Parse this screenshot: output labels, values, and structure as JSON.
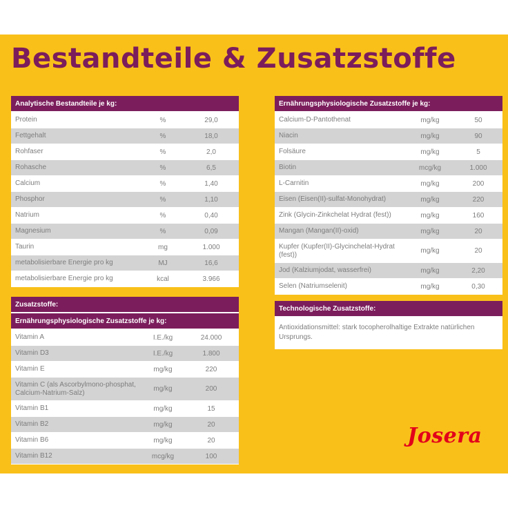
{
  "title": "Bestandteile & Zusatzstoffe",
  "analytic": {
    "header": "Analytische Bestandteile je kg:",
    "rows": [
      {
        "name": "Protein",
        "unit": "%",
        "value": "29,0"
      },
      {
        "name": "Fettgehalt",
        "unit": "%",
        "value": "18,0"
      },
      {
        "name": "Rohfaser",
        "unit": "%",
        "value": "2,0"
      },
      {
        "name": "Rohasche",
        "unit": "%",
        "value": "6,5"
      },
      {
        "name": "Calcium",
        "unit": "%",
        "value": "1,40"
      },
      {
        "name": "Phosphor",
        "unit": "%",
        "value": "1,10"
      },
      {
        "name": "Natrium",
        "unit": "%",
        "value": "0,40"
      },
      {
        "name": "Magnesium",
        "unit": "%",
        "value": "0,09"
      },
      {
        "name": "Taurin",
        "unit": "mg",
        "value": "1.000"
      },
      {
        "name": "metabolisierbare Energie pro kg",
        "unit": "MJ",
        "value": "16,6"
      },
      {
        "name": "metabolisierbare Energie pro kg",
        "unit": "kcal",
        "value": "3.966"
      }
    ]
  },
  "additives": {
    "header": "Zusatzstoffe:",
    "subheader": "Ernährungsphysiologische Zusatzstoffe je kg:",
    "rows": [
      {
        "name": "Vitamin A",
        "unit": "I.E./kg",
        "value": "24.000"
      },
      {
        "name": "Vitamin D3",
        "unit": "I.E./kg",
        "value": "1.800"
      },
      {
        "name": "Vitamin E",
        "unit": "mg/kg",
        "value": "220"
      },
      {
        "name": "Vitamin C (als Ascorbylmono-phosphat, Calcium-Natrium-Salz)",
        "unit": "mg/kg",
        "value": "200"
      },
      {
        "name": "Vitamin B1",
        "unit": "mg/kg",
        "value": "15"
      },
      {
        "name": "Vitamin B2",
        "unit": "mg/kg",
        "value": "20"
      },
      {
        "name": "Vitamin B6",
        "unit": "mg/kg",
        "value": "20"
      },
      {
        "name": "Vitamin B12",
        "unit": "mcg/kg",
        "value": "100"
      }
    ]
  },
  "nutritional": {
    "header": "Ernährungsphysiologische Zusatzstoffe je kg:",
    "rows": [
      {
        "name": "Calcium-D-Pantothenat",
        "unit": "mg/kg",
        "value": "50"
      },
      {
        "name": "Niacin",
        "unit": "mg/kg",
        "value": "90"
      },
      {
        "name": "Folsäure",
        "unit": "mg/kg",
        "value": "5"
      },
      {
        "name": "Biotin",
        "unit": "mcg/kg",
        "value": "1.000"
      },
      {
        "name": "L-Carnitin",
        "unit": "mg/kg",
        "value": "200"
      },
      {
        "name": "Eisen (Eisen(II)-sulfat-Monohydrat)",
        "unit": "mg/kg",
        "value": "220"
      },
      {
        "name": "Zink (Glycin-Zinkchelat Hydrat (fest))",
        "unit": "mg/kg",
        "value": "160"
      },
      {
        "name": "Mangan (Mangan(II)-oxid)",
        "unit": "mg/kg",
        "value": "20"
      },
      {
        "name": "Kupfer (Kupfer(II)-Glycinchelat-Hydrat (fest))",
        "unit": "mg/kg",
        "value": "20"
      },
      {
        "name": "Jod (Kalziumjodat, wasserfrei)",
        "unit": "mg/kg",
        "value": "2,20"
      },
      {
        "name": "Selen (Natriumselenit)",
        "unit": "mg/kg",
        "value": "0,30"
      }
    ]
  },
  "technological": {
    "header": "Technologische Zusatzstoffe:",
    "text": "Antioxidationsmittel: stark tocopherolhaltige Extrakte natürlichen Ursprungs."
  },
  "logo": "Josera",
  "colors": {
    "background": "#f9c01a",
    "accent": "#7b1d5c",
    "brand": "#e2001a"
  }
}
